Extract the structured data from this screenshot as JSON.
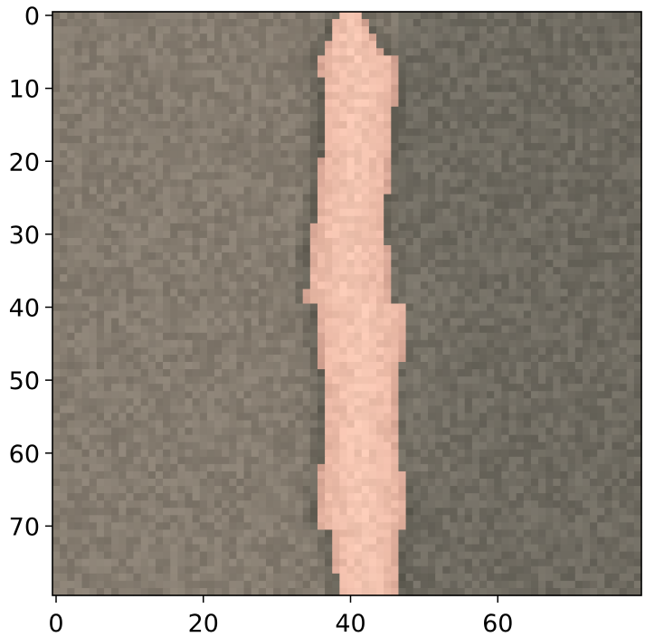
{
  "image": {
    "rows": 80,
    "cols": 80,
    "subject": "bright-vertical-stripe-on-gray-background",
    "colors": {
      "background_left": "#857c70",
      "background_right": "#6e6a60",
      "background_dark_edge": "#5d5a50",
      "stripe_core": "#e8b5a2",
      "stripe_highlight": "#f4c6b2",
      "stripe_shadow": "#c9998a"
    }
  },
  "axes": {
    "x_ticks": [
      {
        "value": 0,
        "label": "0"
      },
      {
        "value": 20,
        "label": "20"
      },
      {
        "value": 40,
        "label": "40"
      },
      {
        "value": 60,
        "label": "60"
      }
    ],
    "y_ticks": [
      {
        "value": 0,
        "label": "0"
      },
      {
        "value": 10,
        "label": "10"
      },
      {
        "value": 20,
        "label": "20"
      },
      {
        "value": 30,
        "label": "30"
      },
      {
        "value": 40,
        "label": "40"
      },
      {
        "value": 50,
        "label": "50"
      },
      {
        "value": 60,
        "label": "60"
      },
      {
        "value": 70,
        "label": "70"
      }
    ],
    "frame_color": "#000000"
  }
}
